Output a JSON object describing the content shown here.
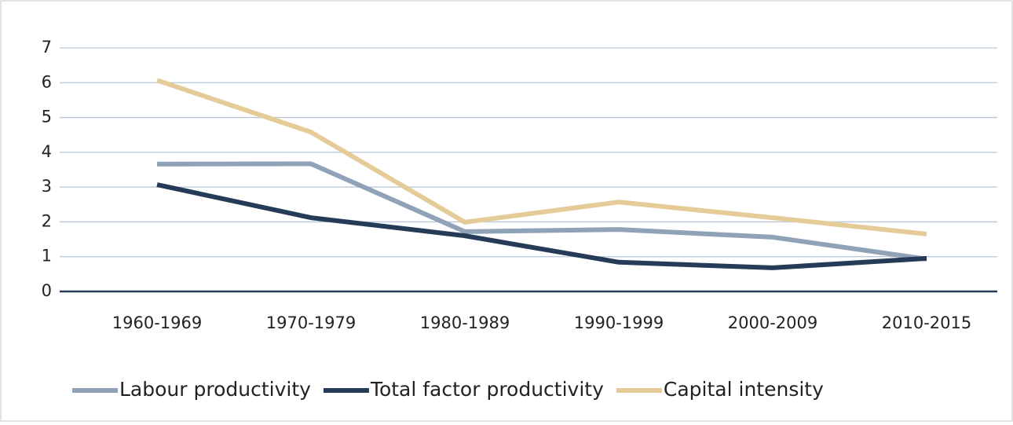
{
  "chart_data": {
    "type": "line",
    "categories": [
      "1960-1969",
      "1970-1979",
      "1980-1989",
      "1990-1999",
      "2000-2009",
      "2010-2015"
    ],
    "series": [
      {
        "name": "Labour productivity",
        "color": "#8fa2b7",
        "values": [
          3.66,
          3.67,
          1.72,
          1.78,
          1.56,
          0.93
        ]
      },
      {
        "name": "Total factor productivity",
        "color": "#253b57",
        "values": [
          3.07,
          2.12,
          1.6,
          0.84,
          0.68,
          0.95
        ]
      },
      {
        "name": "Capital intensity",
        "color": "#e5cb98",
        "values": [
          6.07,
          4.58,
          1.99,
          2.57,
          2.12,
          1.65
        ]
      }
    ],
    "ylim": [
      0,
      7
    ],
    "yticks": [
      0,
      1,
      2,
      3,
      4,
      5,
      6,
      7
    ],
    "grid": true,
    "legend": "bottom"
  }
}
